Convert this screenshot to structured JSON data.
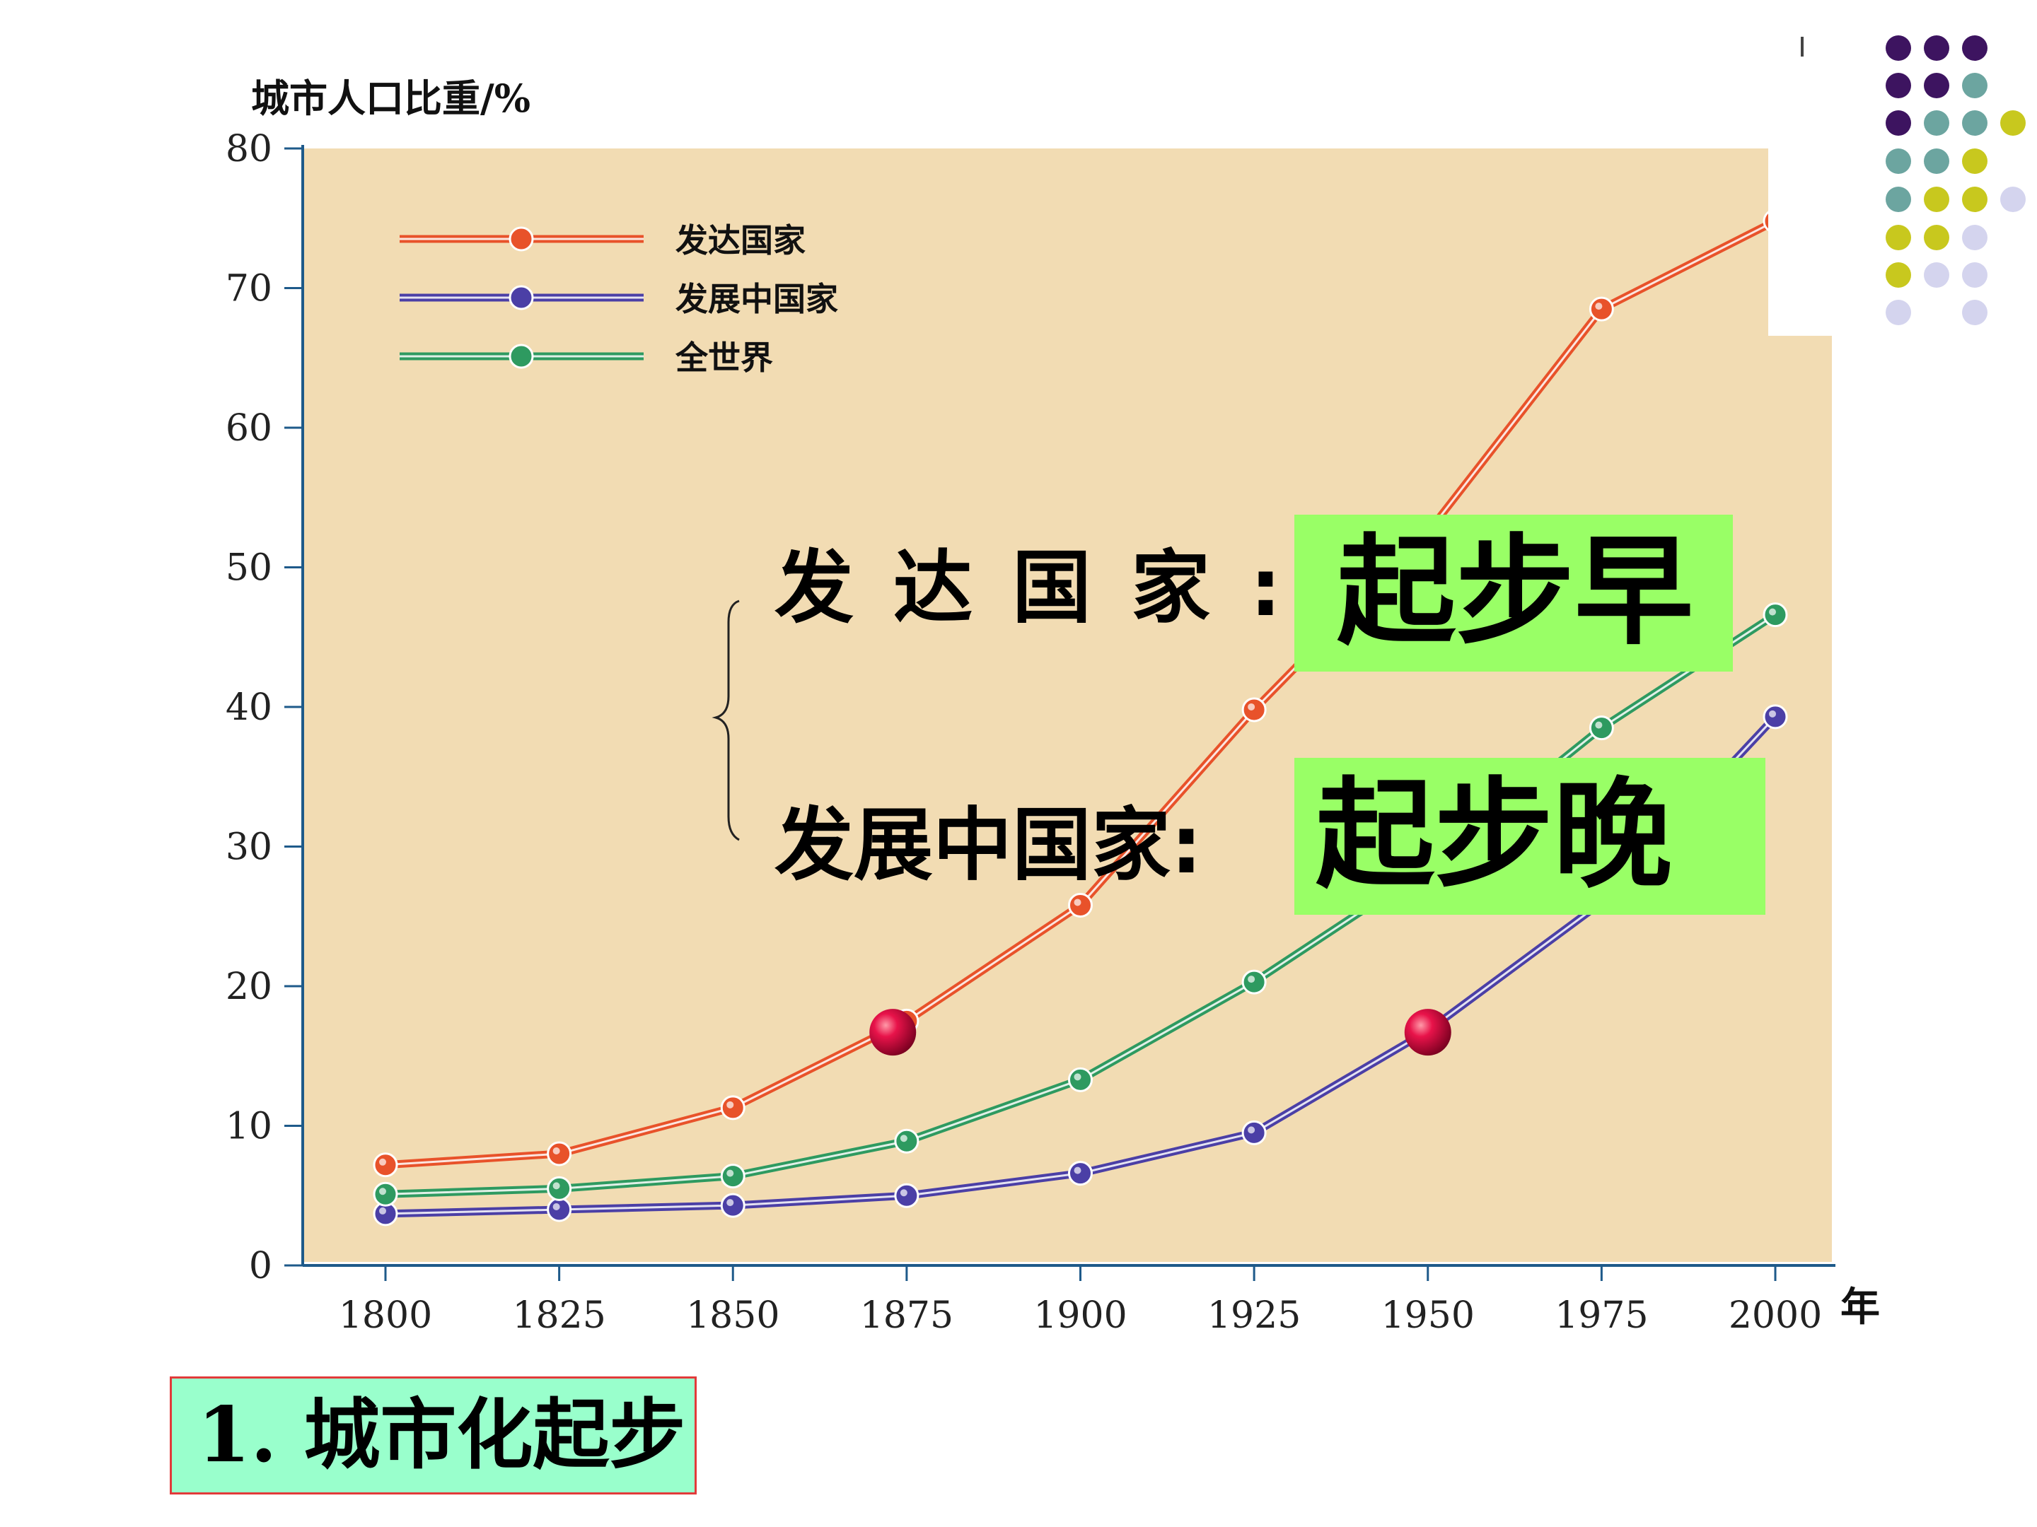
{
  "chart_data": {
    "type": "line",
    "ylabel": "城市人口比重/%",
    "xlabel": "年",
    "x": [
      1800,
      1825,
      1850,
      1875,
      1900,
      1925,
      1950,
      1975,
      2000
    ],
    "x_tick_labels": [
      "1800",
      "1825",
      "1850",
      "1875",
      "1900",
      "1925",
      "1950",
      "1975",
      "2000"
    ],
    "y_ticks": [
      0,
      10,
      20,
      30,
      40,
      50,
      60,
      70,
      80
    ],
    "y_tick_labels": [
      "0",
      "10",
      "20",
      "30",
      "40",
      "50",
      "60",
      "70",
      "80"
    ],
    "ylim": [
      0,
      80
    ],
    "xlim": [
      1788,
      2008
    ],
    "grid": false,
    "legend_position": "top-left",
    "plot_background": "#f2dcb3",
    "series": [
      {
        "name": "发达国家",
        "color": "#e8522a",
        "values": [
          7.2,
          8.0,
          11.3,
          17.5,
          25.8,
          39.8,
          52.5,
          68.5,
          74.8
        ]
      },
      {
        "name": "发展中国家",
        "color": "#4b3fa6",
        "values": [
          3.7,
          4.0,
          4.3,
          5.0,
          6.6,
          9.5,
          16.8,
          26.0,
          39.3
        ]
      },
      {
        "name": "全世界",
        "color": "#2e9a60",
        "values": [
          5.1,
          5.5,
          6.4,
          8.9,
          13.3,
          20.3,
          28.5,
          38.5,
          46.6
        ]
      }
    ],
    "markers": [
      {
        "x": 1873,
        "y": 16.7,
        "color": "#cc1144"
      },
      {
        "x": 1950,
        "y": 16.7,
        "color": "#cc1144"
      }
    ]
  },
  "annotations": {
    "developed_label": "发达国家:",
    "developed_value": "起步早",
    "developing_label": "发展中国家:",
    "developing_value": "起步晚"
  },
  "section_title": "1. 城市化起步",
  "decoration": {
    "colors": [
      "#3d1460",
      "#6ca5a0",
      "#c8c81e",
      "#d4d4ee"
    ]
  }
}
